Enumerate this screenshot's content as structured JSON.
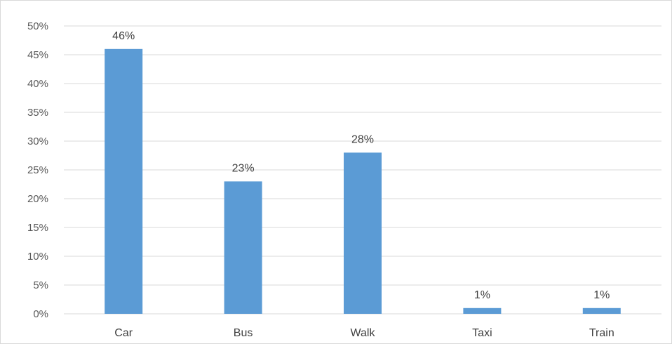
{
  "chart_data": {
    "type": "bar",
    "categories": [
      "Car",
      "Bus",
      "Walk",
      "Taxi",
      "Train"
    ],
    "values": [
      46,
      23,
      28,
      1,
      1
    ],
    "data_labels": [
      "46%",
      "23%",
      "28%",
      "1%",
      "1%"
    ],
    "title": "",
    "xlabel": "",
    "ylabel": "",
    "ylim": [
      0,
      50
    ],
    "y_ticks": [
      0,
      5,
      10,
      15,
      20,
      25,
      30,
      35,
      40,
      45,
      50
    ],
    "y_tick_labels": [
      "0%",
      "5%",
      "10%",
      "15%",
      "20%",
      "25%",
      "30%",
      "35%",
      "40%",
      "45%",
      "50%"
    ],
    "grid": true,
    "legend": "none",
    "bar_color": "#5b9bd5"
  }
}
